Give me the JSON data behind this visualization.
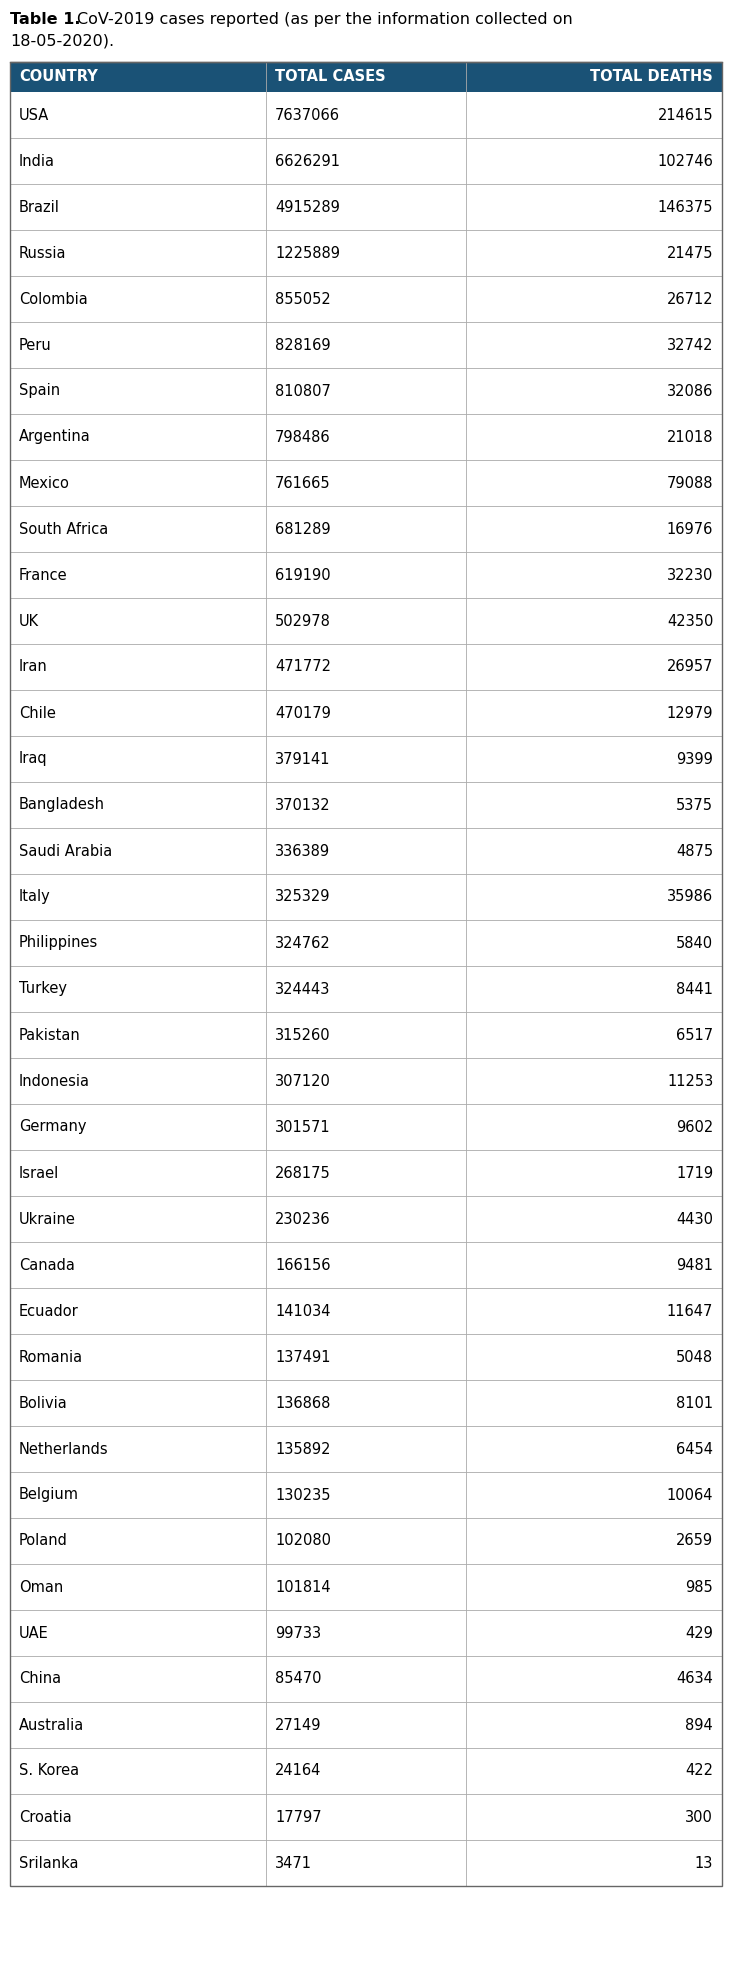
{
  "caption_bold": "Table 1.",
  "caption_normal": "  CoV-2019 cases reported (as per the information collected on 18-05-2020).",
  "caption_line2": "18-05-2020).",
  "header": [
    "COUNTRY",
    "TOTAL CASES",
    "TOTAL DEATHS"
  ],
  "header_bg": "#1a5276",
  "header_text_color": "#ffffff",
  "border_color": "#aaaaaa",
  "rows": [
    [
      "USA",
      "7637066",
      "214615"
    ],
    [
      "India",
      "6626291",
      "102746"
    ],
    [
      "Brazil",
      "4915289",
      "146375"
    ],
    [
      "Russia",
      "1225889",
      "21475"
    ],
    [
      "Colombia",
      "855052",
      "26712"
    ],
    [
      "Peru",
      "828169",
      "32742"
    ],
    [
      "Spain",
      "810807",
      "32086"
    ],
    [
      "Argentina",
      "798486",
      "21018"
    ],
    [
      "Mexico",
      "761665",
      "79088"
    ],
    [
      "South Africa",
      "681289",
      "16976"
    ],
    [
      "France",
      "619190",
      "32230"
    ],
    [
      "UK",
      "502978",
      "42350"
    ],
    [
      "Iran",
      "471772",
      "26957"
    ],
    [
      "Chile",
      "470179",
      "12979"
    ],
    [
      "Iraq",
      "379141",
      "9399"
    ],
    [
      "Bangladesh",
      "370132",
      "5375"
    ],
    [
      "Saudi Arabia",
      "336389",
      "4875"
    ],
    [
      "Italy",
      "325329",
      "35986"
    ],
    [
      "Philippines",
      "324762",
      "5840"
    ],
    [
      "Turkey",
      "324443",
      "8441"
    ],
    [
      "Pakistan",
      "315260",
      "6517"
    ],
    [
      "Indonesia",
      "307120",
      "11253"
    ],
    [
      "Germany",
      "301571",
      "9602"
    ],
    [
      "Israel",
      "268175",
      "1719"
    ],
    [
      "Ukraine",
      "230236",
      "4430"
    ],
    [
      "Canada",
      "166156",
      "9481"
    ],
    [
      "Ecuador",
      "141034",
      "11647"
    ],
    [
      "Romania",
      "137491",
      "5048"
    ],
    [
      "Bolivia",
      "136868",
      "8101"
    ],
    [
      "Netherlands",
      "135892",
      "6454"
    ],
    [
      "Belgium",
      "130235",
      "10064"
    ],
    [
      "Poland",
      "102080",
      "2659"
    ],
    [
      "Oman",
      "101814",
      "985"
    ],
    [
      "UAE",
      "99733",
      "429"
    ],
    [
      "China",
      "85470",
      "4634"
    ],
    [
      "Australia",
      "27149",
      "894"
    ],
    [
      "S. Korea",
      "24164",
      "422"
    ],
    [
      "Croatia",
      "17797",
      "300"
    ],
    [
      "Srilanka",
      "3471",
      "13"
    ]
  ],
  "figsize": [
    7.32,
    19.78
  ],
  "dpi": 100,
  "font_size_caption": 11.5,
  "font_size_header": 10.5,
  "font_size_row": 10.5
}
